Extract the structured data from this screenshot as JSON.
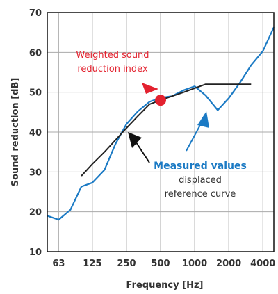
{
  "chart_data": {
    "type": "line",
    "xlabel": "Frequency [Hz]",
    "ylabel": "Sound reduction [dB]",
    "xscale": "log",
    "xlim": [
      50,
      5000
    ],
    "ylim": [
      10,
      70
    ],
    "grid": true,
    "yticks": [
      "10",
      "20",
      "30",
      "40",
      "50",
      "60",
      "70"
    ],
    "xticks": [
      {
        "value": 63,
        "label": "63"
      },
      {
        "value": 125,
        "label": "125"
      },
      {
        "value": 250,
        "label": "250"
      },
      {
        "value": 500,
        "label": "500"
      },
      {
        "value": 1000,
        "label": "1000"
      },
      {
        "value": 2000,
        "label": "2000"
      },
      {
        "value": 4000,
        "label": "4000"
      }
    ],
    "colors": {
      "measured": "#1b7ac4",
      "reference": "#222222",
      "highlight": "#e3222f",
      "grid": "#aaaaaa"
    },
    "series": [
      {
        "key": "measured",
        "x": [
          50,
          63,
          80,
          100,
          125,
          160,
          200,
          250,
          315,
          400,
          500,
          630,
          800,
          1000,
          1250,
          1600,
          2000,
          2500,
          3150,
          4000,
          5000
        ],
        "y": [
          19,
          18,
          20.5,
          26.3,
          27.3,
          30.5,
          37,
          42,
          45.2,
          47.6,
          48.6,
          49,
          50.5,
          51.5,
          49.2,
          45.5,
          48.5,
          52.3,
          56.8,
          60.3,
          66.3
        ]
      },
      {
        "key": "reference",
        "x": [
          100,
          125,
          160,
          200,
          250,
          315,
          400,
          500,
          630,
          800,
          1000,
          1250,
          1600,
          2000,
          2500,
          3150
        ],
        "y": [
          29,
          32,
          35,
          38,
          41,
          44,
          47,
          48,
          49,
          50,
          51,
          52,
          52,
          52,
          52,
          52
        ]
      }
    ],
    "highlight_point": {
      "x": 500,
      "y": 48
    },
    "annotations": {
      "weighted_line1": "Weighted sound",
      "weighted_line2": "reduction index",
      "measured": "Measured values",
      "displaced_line1": "displaced",
      "displaced_line2": "reference curve"
    }
  }
}
